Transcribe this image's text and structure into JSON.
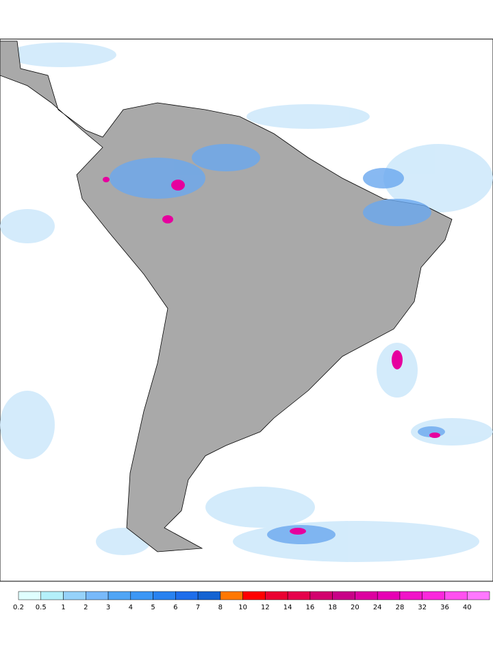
{
  "colorbar": {
    "levels": [
      0.2,
      0.5,
      1,
      2,
      3,
      4,
      5,
      6,
      7,
      8,
      10,
      12,
      14,
      16,
      18,
      20,
      24,
      28,
      32,
      36,
      40
    ],
    "colors": [
      "#e0ffff",
      "#b4f0fa",
      "#96d2fa",
      "#78b9fa",
      "#50a5f5",
      "#3c97f5",
      "#2882f0",
      "#1e6eeb",
      "#1464d2",
      "#ff7800",
      "#ff0000",
      "#eb0032",
      "#e6004c",
      "#d2006e",
      "#c80087",
      "#dc00a0",
      "#e600b4",
      "#f014c8",
      "#fa28dc",
      "#ff50f0",
      "#ff78ff"
    ]
  }
}
